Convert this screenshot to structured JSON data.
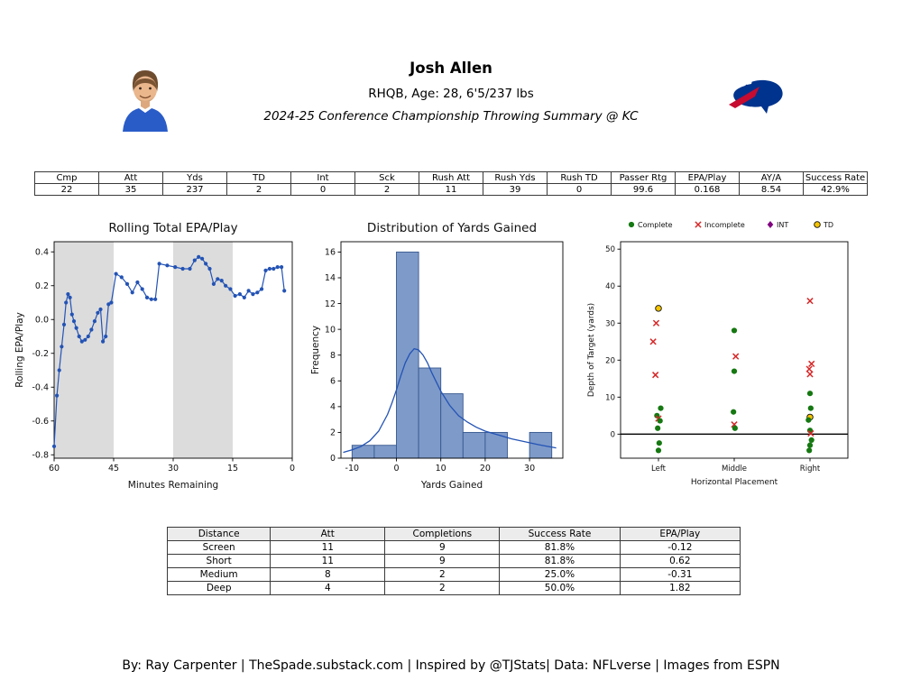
{
  "header": {
    "player_name": "Josh Allen",
    "player_bio": "RHQB, Age: 28, 6'5/237 lbs",
    "report_title": "2024-25 Conference Championship Throwing Summary @ KC",
    "team_colors": {
      "primary": "#00338d",
      "secondary": "#c60c30"
    }
  },
  "stats_table": {
    "headers": [
      "Cmp",
      "Att",
      "Yds",
      "TD",
      "Int",
      "Sck",
      "Rush Att",
      "Rush Yds",
      "Rush TD",
      "Passer Rtg",
      "EPA/Play",
      "AY/A",
      "Success Rate"
    ],
    "rows": [
      [
        "22",
        "35",
        "237",
        "2",
        "0",
        "2",
        "11",
        "39",
        "0",
        "99.6",
        "0.168",
        "8.54",
        "42.9%"
      ]
    ]
  },
  "distance_table": {
    "headers": [
      "Distance",
      "Att",
      "Completions",
      "Success Rate",
      "EPA/Play"
    ],
    "rows": [
      [
        "Screen",
        "11",
        "9",
        "81.8%",
        "-0.12"
      ],
      [
        "Short",
        "11",
        "9",
        "81.8%",
        "0.62"
      ],
      [
        "Medium",
        "8",
        "2",
        "25.0%",
        "-0.31"
      ],
      [
        "Deep",
        "4",
        "2",
        "50.0%",
        "1.82"
      ]
    ]
  },
  "footer": "By: Ray Carpenter | TheSpade.substack.com | Inspired by @TJStats| Data: NFLverse | Images from ESPN",
  "chart_data": [
    {
      "type": "line",
      "title": "Rolling Total EPA/Play",
      "xlabel": "Minutes Remaining",
      "ylabel": "Rolling EPA/Play",
      "xlim": [
        60,
        0
      ],
      "ylim": [
        -0.82,
        0.46
      ],
      "xticks": [
        60,
        45,
        30,
        15,
        0
      ],
      "yticks": [
        -0.8,
        -0.6,
        -0.4,
        -0.2,
        0,
        0.2,
        0.4
      ],
      "quarter_bands": [
        [
          60,
          45
        ],
        [
          30,
          15
        ]
      ],
      "band_color": "#dcdcdc",
      "line_color": "#2353b5",
      "points": [
        [
          60,
          -0.75
        ],
        [
          59.3,
          -0.45
        ],
        [
          58.7,
          -0.3
        ],
        [
          58.1,
          -0.16
        ],
        [
          57.5,
          -0.03
        ],
        [
          57,
          0.1
        ],
        [
          56.5,
          0.15
        ],
        [
          56,
          0.13
        ],
        [
          55.5,
          0.03
        ],
        [
          55,
          -0.01
        ],
        [
          54.4,
          -0.05
        ],
        [
          53.7,
          -0.1
        ],
        [
          53,
          -0.13
        ],
        [
          52.2,
          -0.12
        ],
        [
          51.4,
          -0.1
        ],
        [
          50.6,
          -0.06
        ],
        [
          49.8,
          -0.01
        ],
        [
          49,
          0.04
        ],
        [
          48.3,
          0.06
        ],
        [
          47.7,
          -0.13
        ],
        [
          47,
          -0.1
        ],
        [
          46.3,
          0.09
        ],
        [
          45.6,
          0.1
        ],
        [
          44.4,
          0.27
        ],
        [
          43,
          0.25
        ],
        [
          41.6,
          0.21
        ],
        [
          40.3,
          0.16
        ],
        [
          39,
          0.22
        ],
        [
          37.8,
          0.18
        ],
        [
          36.6,
          0.13
        ],
        [
          35.5,
          0.12
        ],
        [
          34.5,
          0.12
        ],
        [
          33.5,
          0.33
        ],
        [
          31.5,
          0.32
        ],
        [
          29.5,
          0.31
        ],
        [
          27.6,
          0.3
        ],
        [
          25.8,
          0.3
        ],
        [
          24.6,
          0.35
        ],
        [
          23.6,
          0.37
        ],
        [
          22.7,
          0.36
        ],
        [
          21.8,
          0.33
        ],
        [
          20.8,
          0.3
        ],
        [
          19.8,
          0.21
        ],
        [
          18.8,
          0.24
        ],
        [
          17.8,
          0.23
        ],
        [
          16.8,
          0.2
        ],
        [
          15.6,
          0.18
        ],
        [
          14.4,
          0.14
        ],
        [
          13.2,
          0.15
        ],
        [
          12.1,
          0.13
        ],
        [
          11,
          0.17
        ],
        [
          9.9,
          0.15
        ],
        [
          8.8,
          0.16
        ],
        [
          7.7,
          0.18
        ],
        [
          6.7,
          0.29
        ],
        [
          5.7,
          0.3
        ],
        [
          4.7,
          0.3
        ],
        [
          3.7,
          0.31
        ],
        [
          2.7,
          0.31
        ],
        [
          2,
          0.17
        ]
      ]
    },
    {
      "type": "histogram",
      "title": "Distribution of Yards Gained",
      "xlabel": "Yards Gained",
      "ylabel": "Frequency",
      "xlim": [
        -12.5,
        37.5
      ],
      "ylim": [
        0,
        16.8
      ],
      "xticks": [
        -10,
        0,
        10,
        20,
        30
      ],
      "yticks": [
        0,
        2,
        4,
        6,
        8,
        10,
        12,
        14,
        16
      ],
      "bin_edges": [
        -10,
        -5,
        0,
        5,
        10,
        15,
        20,
        25,
        30,
        35
      ],
      "counts": [
        1,
        1,
        16,
        7,
        5,
        2,
        2,
        0,
        2
      ],
      "bar_color": "#7e9ac9",
      "bar_edge": "#37598f",
      "kde_color": "#2353b5",
      "kde": [
        [
          -12,
          0.45
        ],
        [
          -10,
          0.65
        ],
        [
          -8,
          0.9
        ],
        [
          -6,
          1.35
        ],
        [
          -4,
          2.1
        ],
        [
          -2,
          3.4
        ],
        [
          -1,
          4.3
        ],
        [
          0,
          5.3
        ],
        [
          1,
          6.4
        ],
        [
          2,
          7.4
        ],
        [
          3,
          8.1
        ],
        [
          4,
          8.5
        ],
        [
          5,
          8.4
        ],
        [
          6,
          8.0
        ],
        [
          7,
          7.4
        ],
        [
          8,
          6.6
        ],
        [
          9,
          5.9
        ],
        [
          10,
          5.2
        ],
        [
          12,
          4.1
        ],
        [
          14,
          3.3
        ],
        [
          16,
          2.8
        ],
        [
          18,
          2.4
        ],
        [
          20,
          2.1
        ],
        [
          22,
          1.9
        ],
        [
          24,
          1.7
        ],
        [
          26,
          1.5
        ],
        [
          28,
          1.35
        ],
        [
          30,
          1.2
        ],
        [
          32,
          1.05
        ],
        [
          34,
          0.92
        ],
        [
          36,
          0.8
        ]
      ]
    },
    {
      "type": "scatter",
      "xlabel": "Horizontal Placement",
      "ylabel": "Depth of Target (yards)",
      "categories": [
        "Left",
        "Middle",
        "Right"
      ],
      "xlim": [
        -0.5,
        2.5
      ],
      "ylim": [
        -6.5,
        52
      ],
      "yticks": [
        0,
        10,
        20,
        30,
        40,
        50
      ],
      "colors": {
        "complete": "#157811",
        "incomplete": "#d62728",
        "int": "#800080",
        "td": "#f5c400"
      },
      "legend": [
        {
          "label": "Complete",
          "type": "Complete"
        },
        {
          "label": "Incomplete",
          "type": "Incomplete"
        },
        {
          "label": "INT",
          "type": "INT"
        },
        {
          "label": "TD",
          "type": "TD"
        }
      ],
      "points": [
        [
          0,
          34,
          "TD"
        ],
        [
          -0.03,
          30,
          "Incomplete"
        ],
        [
          -0.07,
          25,
          "Incomplete"
        ],
        [
          -0.04,
          16,
          "Incomplete"
        ],
        [
          0.03,
          7,
          "Complete"
        ],
        [
          -0.02,
          5,
          "Complete"
        ],
        [
          0,
          4.2,
          "Incomplete"
        ],
        [
          0.02,
          3.6,
          "Complete"
        ],
        [
          -0.01,
          1.6,
          "Complete"
        ],
        [
          0.01,
          -2.4,
          "Complete"
        ],
        [
          0,
          -4.4,
          "Complete"
        ],
        [
          1,
          28,
          "Complete"
        ],
        [
          1.02,
          21,
          "Incomplete"
        ],
        [
          1,
          17,
          "Complete"
        ],
        [
          0.99,
          6,
          "Complete"
        ],
        [
          1,
          2.6,
          "Incomplete"
        ],
        [
          1.01,
          1.6,
          "Complete"
        ],
        [
          2,
          36,
          "Incomplete"
        ],
        [
          2.02,
          19,
          "Incomplete"
        ],
        [
          1.99,
          17.6,
          "Incomplete"
        ],
        [
          2,
          16.2,
          "Incomplete"
        ],
        [
          2,
          11,
          "Complete"
        ],
        [
          2.01,
          7,
          "Complete"
        ],
        [
          2,
          4.6,
          "TD"
        ],
        [
          1.98,
          3.8,
          "Complete"
        ],
        [
          2,
          1,
          "Complete"
        ],
        [
          2.01,
          0.2,
          "Incomplete"
        ],
        [
          2.02,
          -1.6,
          "Complete"
        ],
        [
          2,
          -3,
          "Complete"
        ],
        [
          1.99,
          -4.4,
          "Complete"
        ]
      ]
    }
  ]
}
